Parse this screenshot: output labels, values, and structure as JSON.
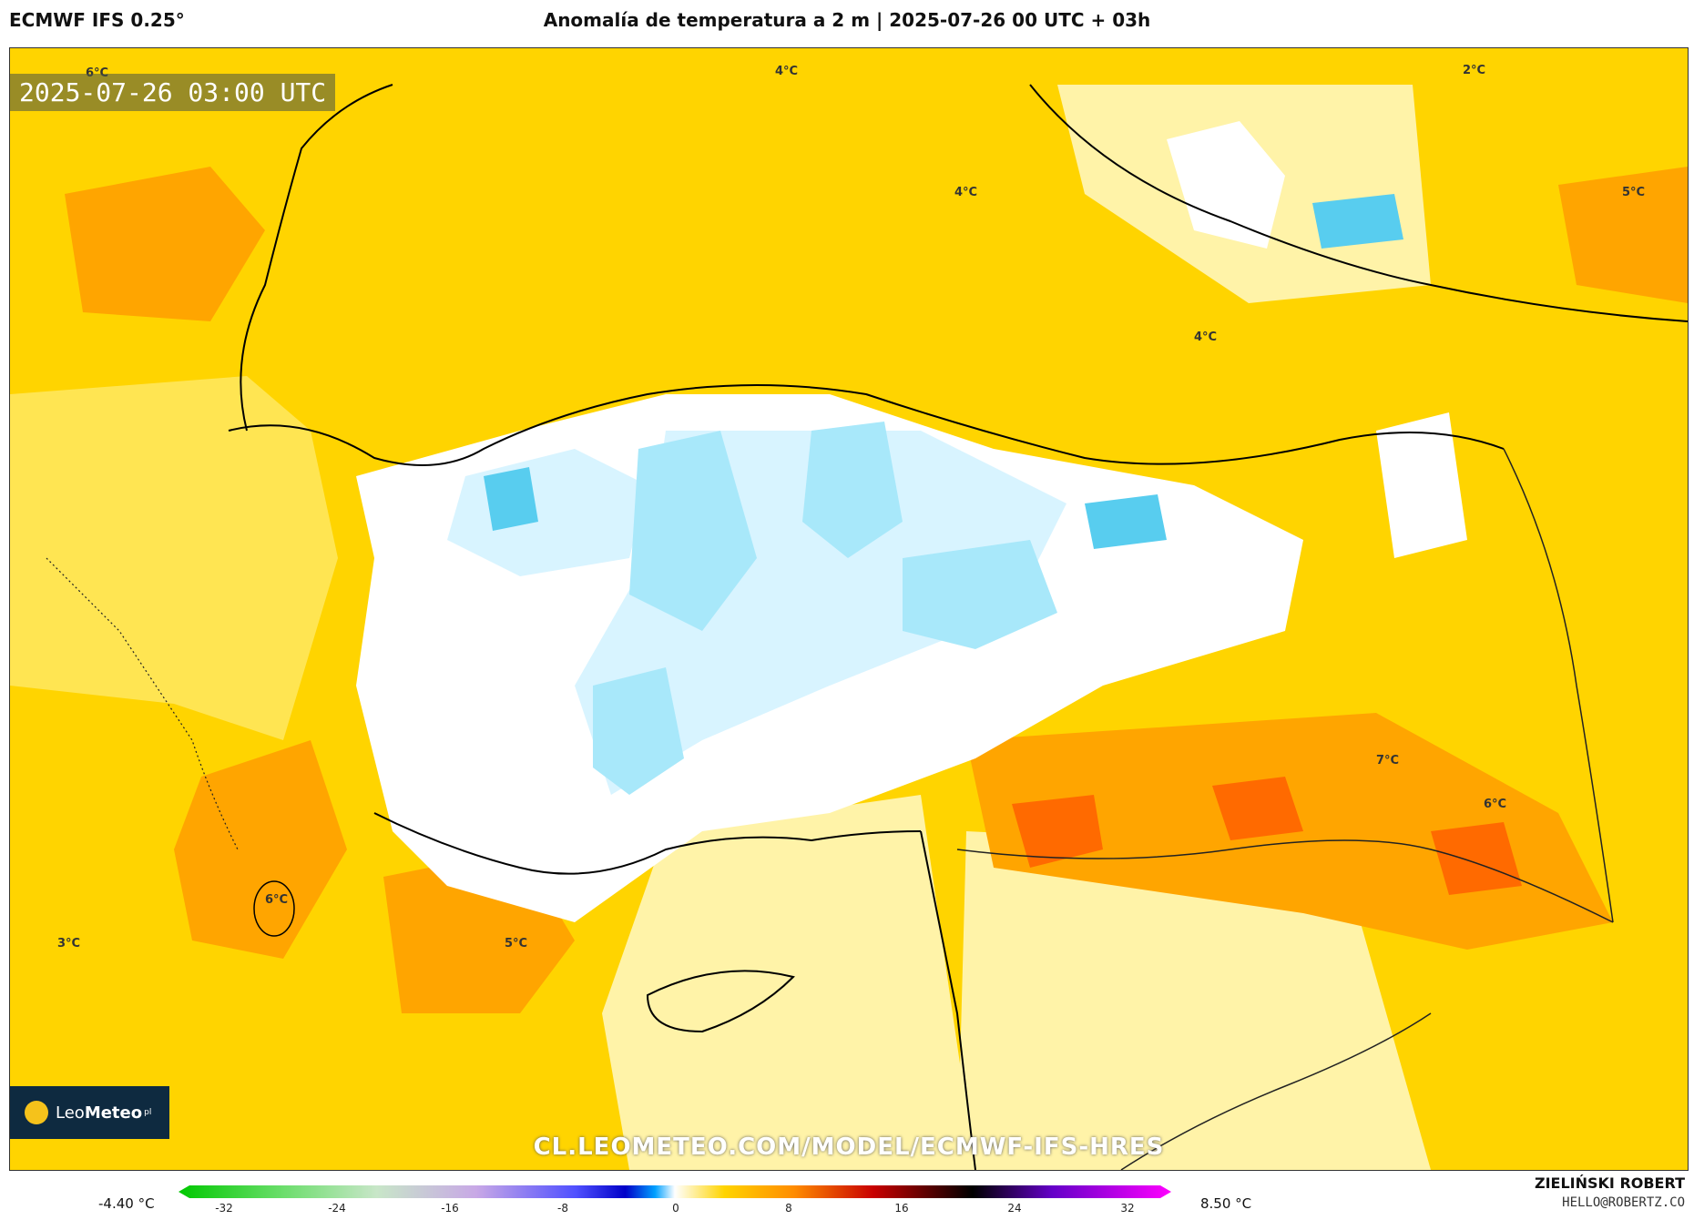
{
  "header": {
    "model": "ECMWF IFS 0.25°",
    "title": "Anomalía de temperatura a 2 m | 2025-07-26 00 UTC + 03h"
  },
  "map": {
    "timestamp": "2025-07-26 03:00 UTC",
    "url": "CL.LEOMETEO.COM/MODEL/ECMWF-IFS-HRES",
    "logo": {
      "brand_a": "Leo",
      "brand_b": "Meteo",
      "suffix": "pl"
    },
    "labels": [
      "6°C",
      "4°C",
      "4°C",
      "4°C",
      "2°C",
      "5°C",
      "7°C",
      "6°C",
      "6°C",
      "3°C",
      "5°C"
    ]
  },
  "legend": {
    "min": "-4.40 °C",
    "max": "8.50 °C",
    "ticks": [
      "-32",
      "-24",
      "-16",
      "-8",
      "0",
      "8",
      "16",
      "24",
      "32"
    ]
  },
  "footer": {
    "author": "ZIELIŃSKI ROBERT",
    "email": "HELLO@ROBERTZ.CO"
  },
  "colors": {
    "warm_light": "#fff3a8",
    "warm_mid": "#ffd400",
    "warm_orange": "#ffa500",
    "warm_deep": "#ff6a00",
    "neutral": "#ffffff",
    "cool_light": "#d8f4ff",
    "cool_mid": "#a8e8fa",
    "cool_deep": "#58cdef"
  }
}
